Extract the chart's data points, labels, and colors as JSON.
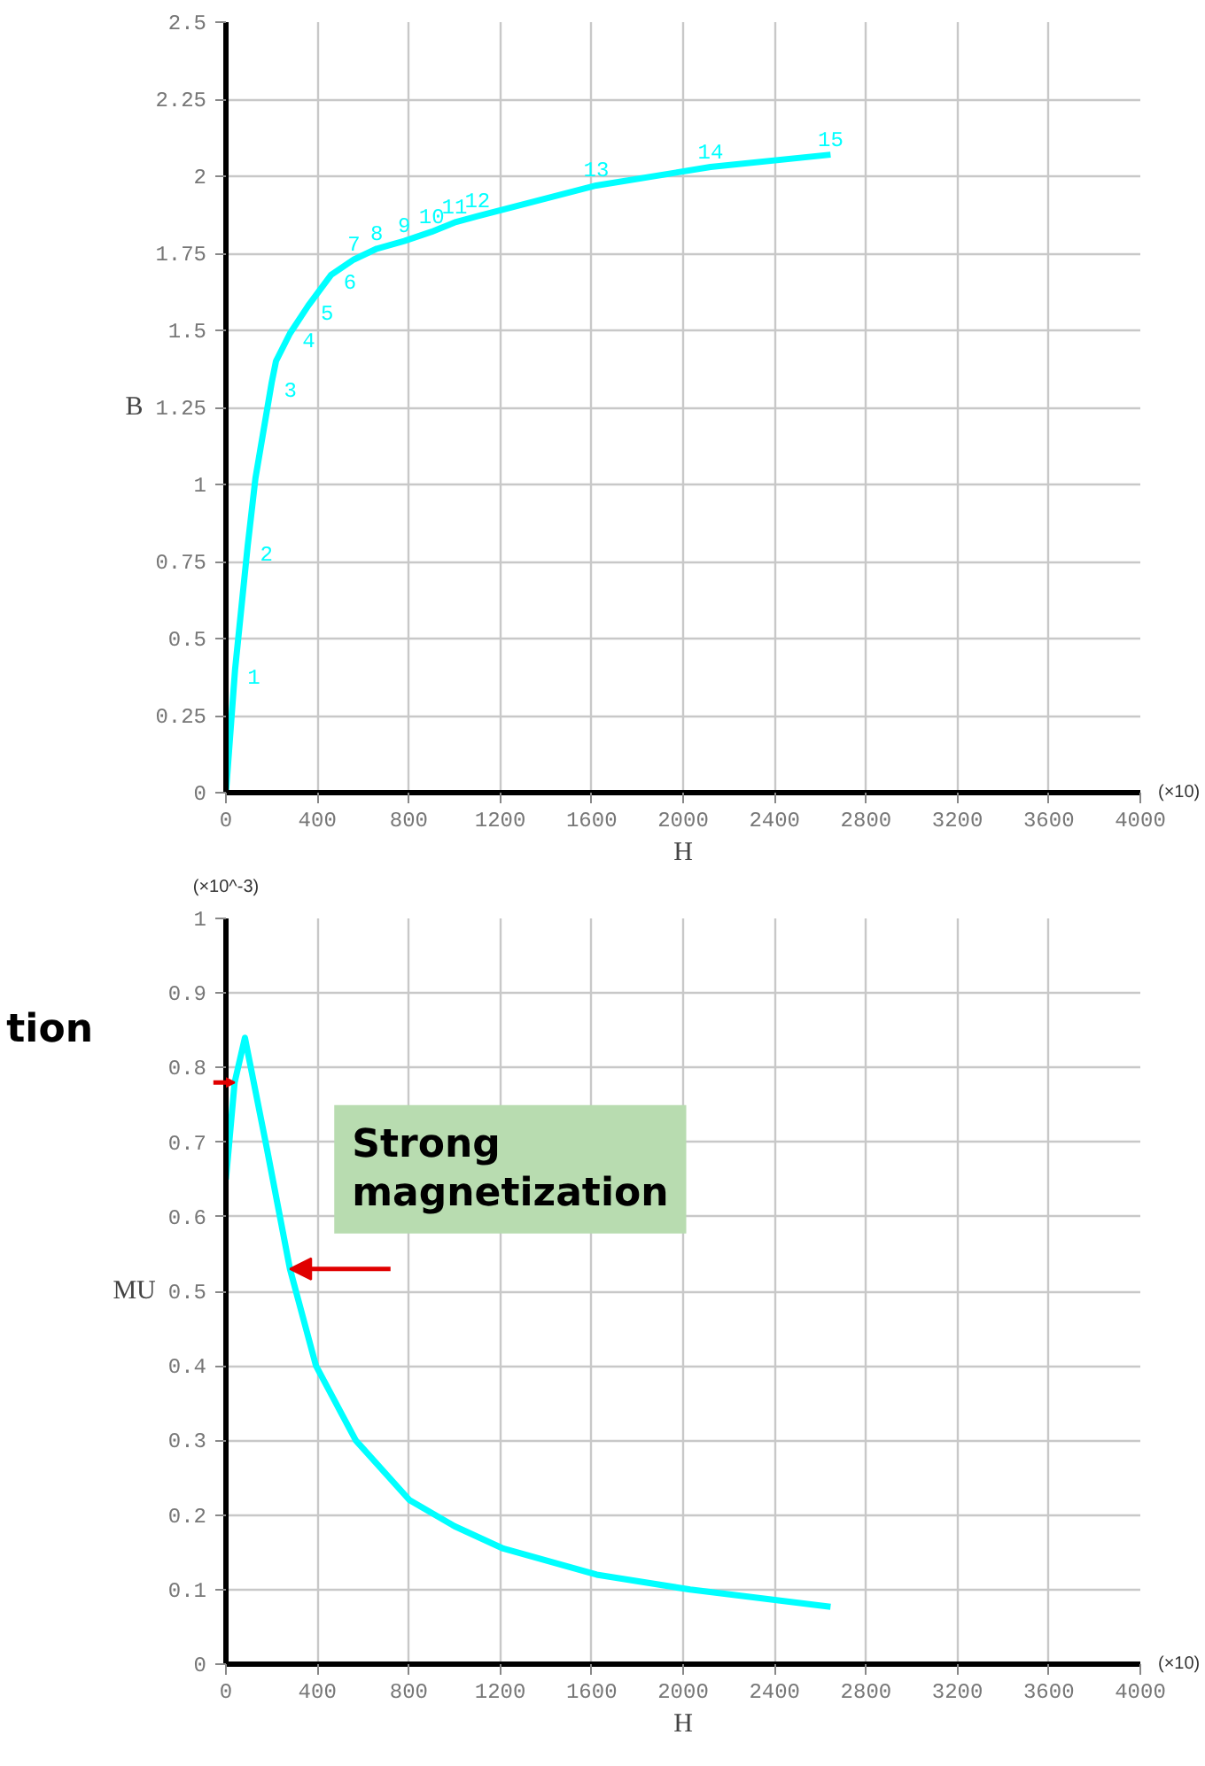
{
  "chart_data": [
    {
      "type": "line",
      "xlabel": "H",
      "ylabel": "B",
      "xlim": [
        0,
        4000
      ],
      "ylim": [
        0,
        2.5
      ],
      "xticks": [
        0,
        400,
        800,
        1200,
        1600,
        2000,
        2400,
        2800,
        3200,
        3600,
        4000
      ],
      "yticks": [
        0,
        0.25,
        0.5,
        0.75,
        1,
        1.25,
        1.5,
        1.75,
        2,
        2.25,
        2.5
      ],
      "grid": true,
      "marker": "none",
      "line_style": "solid",
      "series": [
        {
          "color": "#00ffff",
          "x": [
            0,
            40,
            95,
            129,
            200,
            219,
            280,
            360,
            460,
            560,
            660,
            780,
            900,
            1000,
            1100,
            1620,
            2120,
            2645
          ],
          "values": [
            0,
            0.4,
            0.8,
            1.02,
            1.33,
            1.4,
            1.49,
            1.58,
            1.68,
            1.73,
            1.765,
            1.79,
            1.82,
            1.85,
            1.87,
            1.97,
            2.03,
            2.07
          ]
        }
      ],
      "annotations": [
        "(×10)",
        {
          "text": "1",
          "x": 40,
          "y": 0.4
        },
        {
          "text": "2",
          "x": 95,
          "y": 0.8
        },
        {
          "text": "3",
          "x": 200,
          "y": 1.33
        },
        {
          "text": "4",
          "x": 280,
          "y": 1.49
        },
        {
          "text": "5",
          "x": 360,
          "y": 1.58
        },
        {
          "text": "6",
          "x": 460,
          "y": 1.68
        },
        {
          "text": "7",
          "x": 560,
          "y": 1.73
        },
        {
          "text": "8",
          "x": 660,
          "y": 1.765
        },
        {
          "text": "9",
          "x": 780,
          "y": 1.79
        },
        {
          "text": "10",
          "x": 900,
          "y": 1.82
        },
        {
          "text": "11",
          "x": 1000,
          "y": 1.85
        },
        {
          "text": "12",
          "x": 1100,
          "y": 1.87
        },
        {
          "text": "13",
          "x": 1620,
          "y": 1.97
        },
        {
          "text": "14",
          "x": 2120,
          "y": 2.03
        },
        {
          "text": "15",
          "x": 2645,
          "y": 2.07
        }
      ]
    },
    {
      "type": "line",
      "xlabel": "H",
      "ylabel": "MU",
      "xlim": [
        0,
        4000
      ],
      "ylim": [
        0,
        1
      ],
      "xticks": [
        0,
        400,
        800,
        1200,
        1600,
        2000,
        2400,
        2800,
        3200,
        3600,
        4000
      ],
      "yticks": [
        0,
        0.1,
        0.2,
        0.3,
        0.4,
        0.5,
        0.6,
        0.7,
        0.8,
        0.9,
        1
      ],
      "grid": true,
      "marker": "none",
      "line_style": "solid",
      "series": [
        {
          "color": "#00ffff",
          "x": [
            0,
            38,
            83,
            180,
            280,
            394,
            568,
            803,
            1000,
            1213,
            1622,
            2031,
            2645
          ],
          "values": [
            0.65,
            0.78,
            0.84,
            0.69,
            0.53,
            0.4,
            0.3,
            0.22,
            0.185,
            0.155,
            0.12,
            0.1,
            0.077
          ]
        }
      ],
      "annotations": [
        "(×10)",
        "(×10^-3)",
        {
          "text": "tion",
          "x": 38,
          "y": 0.78
        },
        {
          "text": "Strong\nmagnetization",
          "x": 280,
          "y": 0.53
        }
      ]
    }
  ]
}
